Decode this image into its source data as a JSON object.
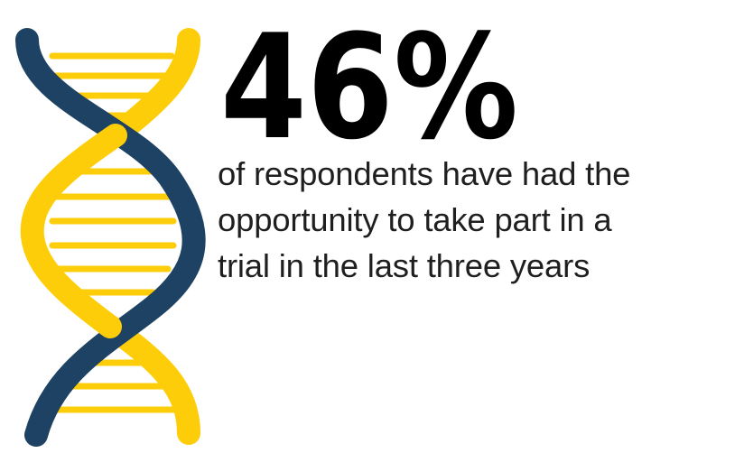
{
  "stat": {
    "value": "46%"
  },
  "caption": {
    "lines": [
      "of respondents have had the",
      "opportunity to take part in a",
      "trial in the last three years"
    ]
  },
  "illustration": {
    "icon": "dna-helix-icon",
    "colors": {
      "strand_dark": "#1e4263",
      "strand_yellow": "#fdcd0a"
    }
  },
  "colors": {
    "text": "#1f1f1f",
    "stat_text": "#000000",
    "background": "#ffffff"
  }
}
